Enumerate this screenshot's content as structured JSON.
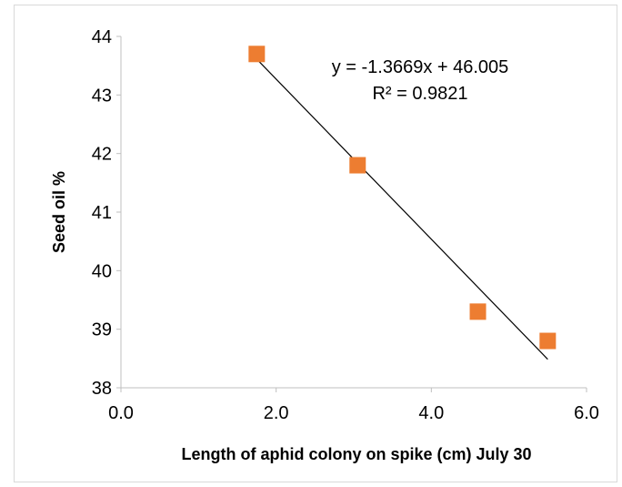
{
  "chart_data": {
    "type": "scatter",
    "xlabel": "Length of aphid colony on spike (cm) July 30",
    "ylabel": "Seed oil %",
    "xlim": [
      0,
      6
    ],
    "ylim": [
      38,
      44
    ],
    "x_ticks": [
      "0.0",
      "2.0",
      "4.0",
      "6.0"
    ],
    "y_ticks": [
      "38",
      "39",
      "40",
      "41",
      "42",
      "43",
      "44"
    ],
    "series": [
      {
        "marker": "square",
        "color": "#ed7d31",
        "points": [
          {
            "x": 1.75,
            "y": 43.7
          },
          {
            "x": 3.05,
            "y": 41.8
          },
          {
            "x": 4.6,
            "y": 39.3
          },
          {
            "x": 5.5,
            "y": 38.8
          }
        ]
      }
    ],
    "trendline": {
      "type": "linear",
      "slope": -1.3669,
      "intercept": 46.005,
      "x_range": [
        1.75,
        5.5
      ],
      "color": "#000000",
      "equation_label": "y = -1.3669x + 46.005",
      "r2_label": "R² = 0.9821"
    },
    "grid": false,
    "legend": false
  }
}
